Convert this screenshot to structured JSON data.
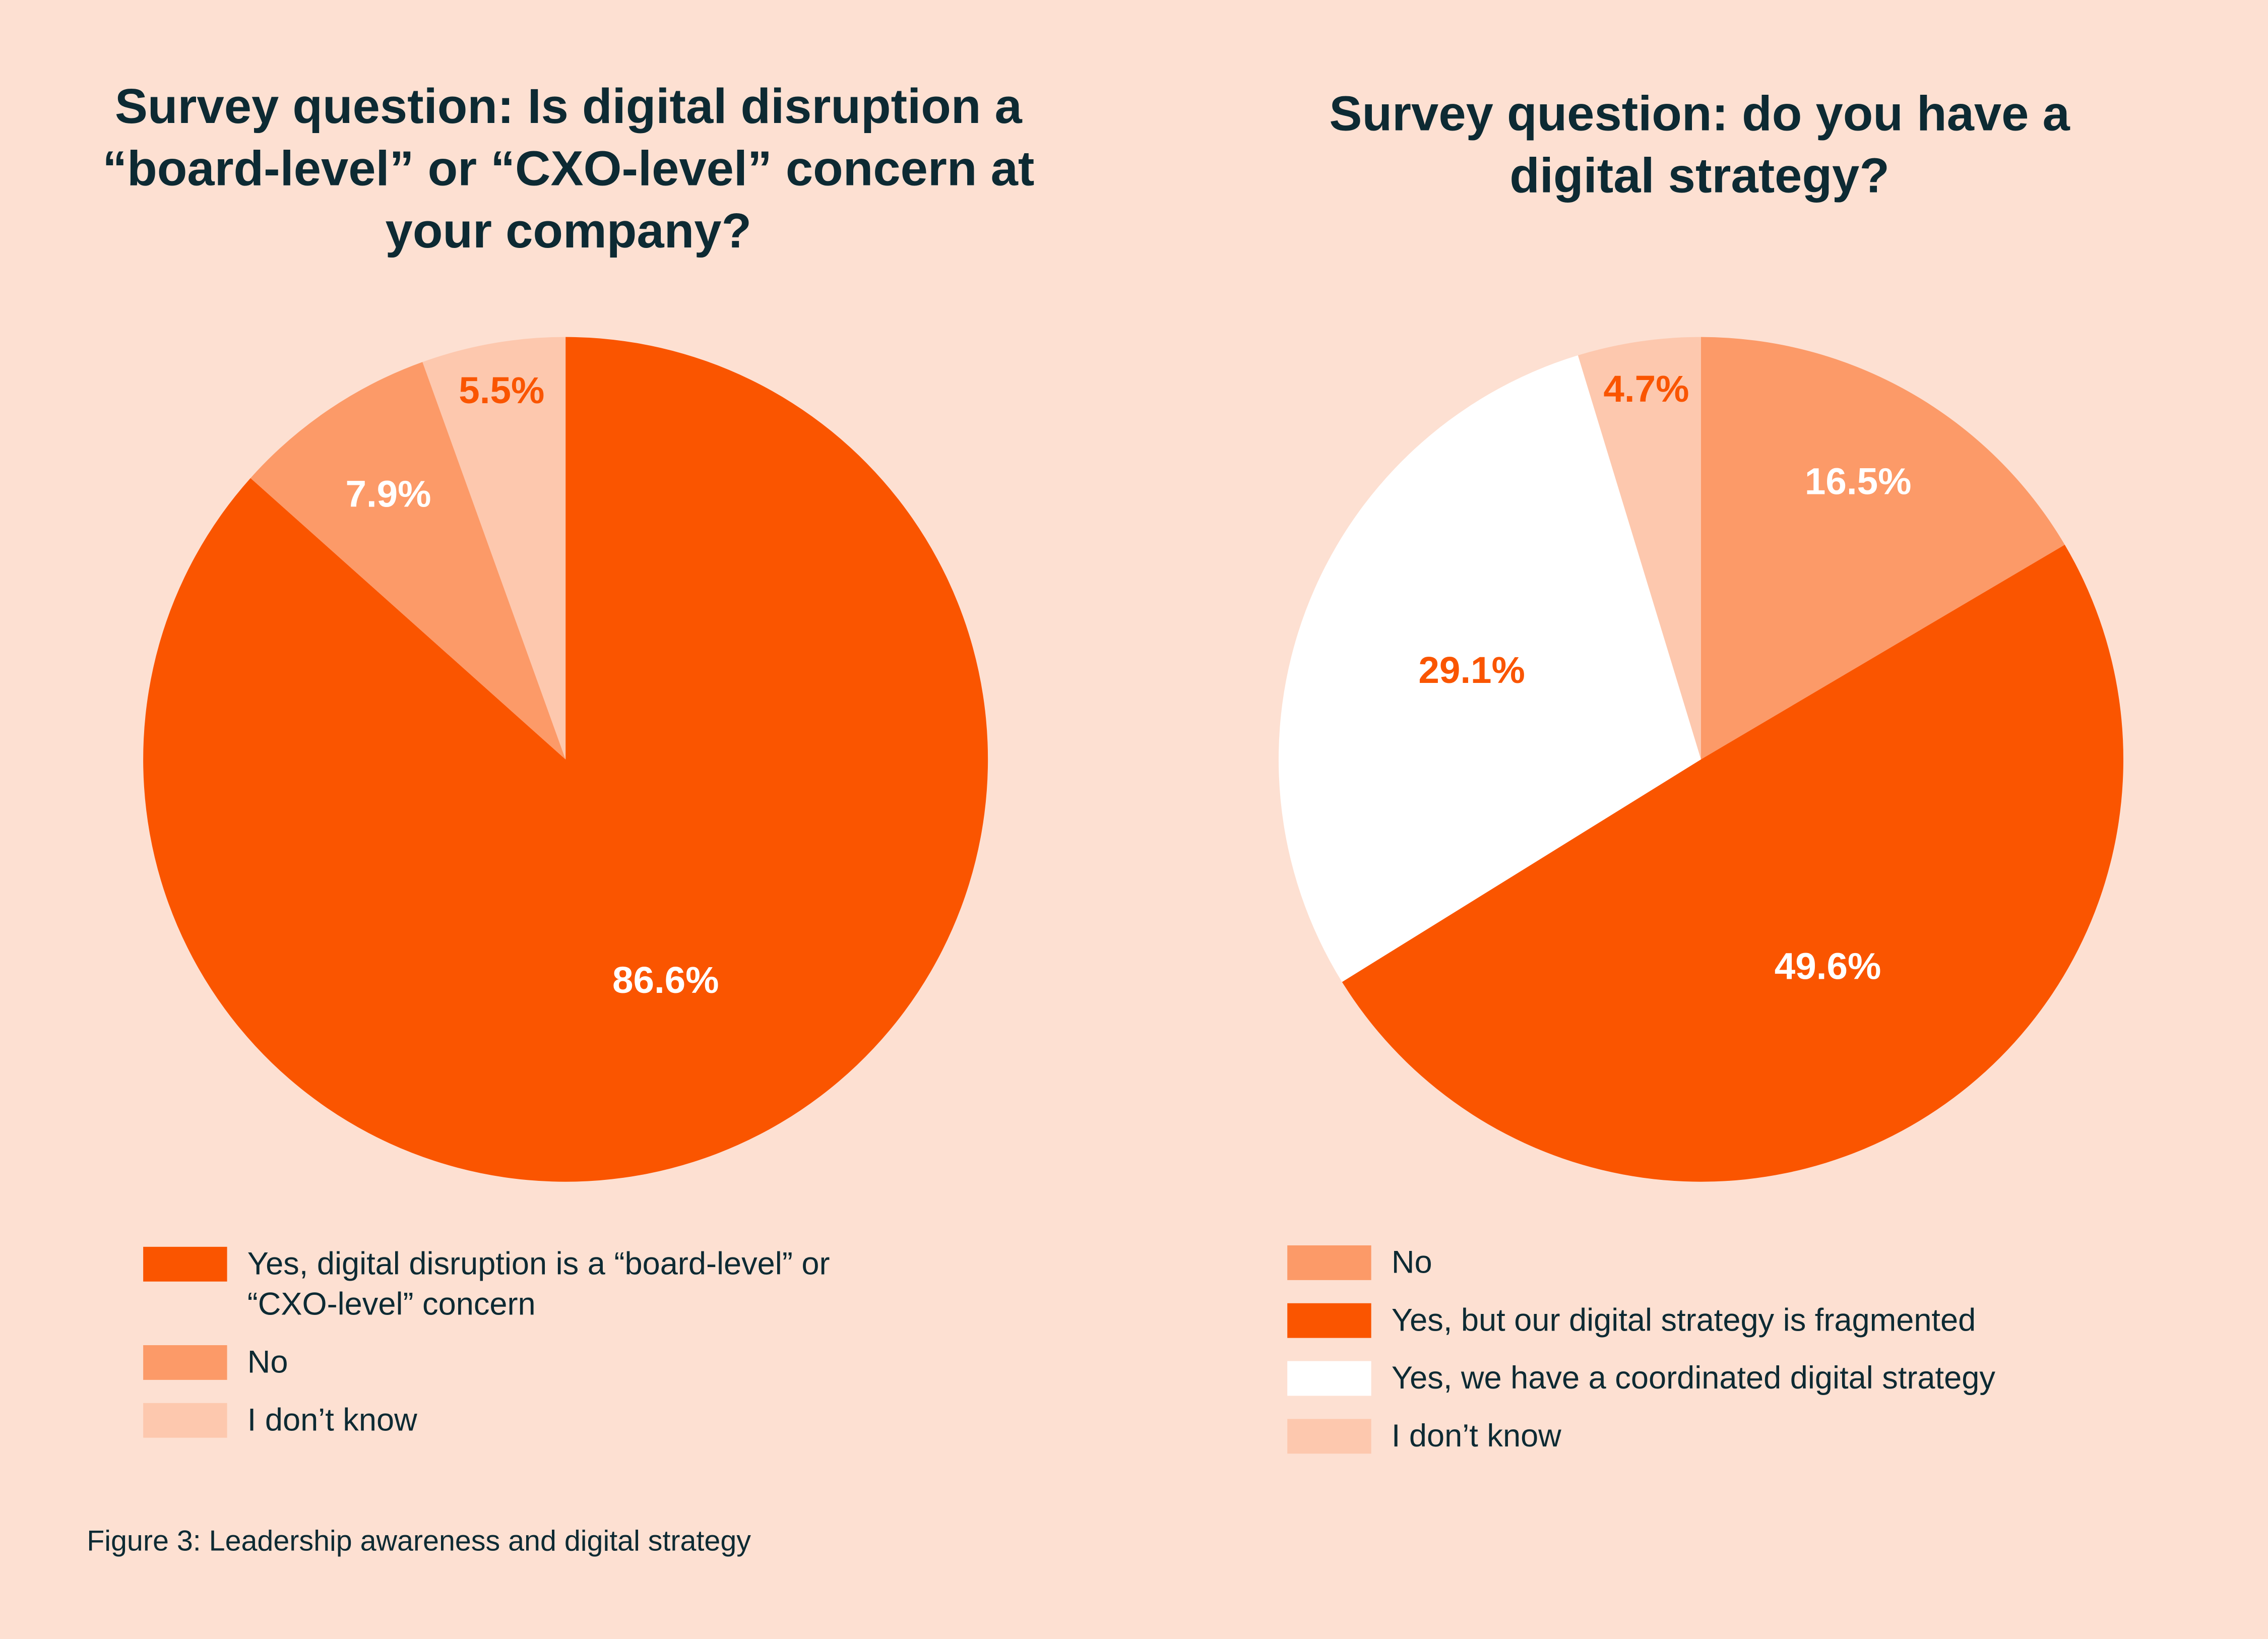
{
  "caption": "Figure 3: Leadership awareness and digital strategy",
  "chart_data": [
    {
      "type": "pie",
      "title": "Survey question: Is digital disruption a “board-level” or “CXO-level” concern at your company?",
      "categories": [
        "Yes, digital disruption is a “board-level” or “CXO-level” concern",
        "No",
        "I don’t know"
      ],
      "values": [
        86.6,
        7.9,
        5.5
      ],
      "value_labels": [
        "86.6%",
        "7.9%",
        "5.5%"
      ],
      "colors": [
        "#fa5500",
        "#fc9a68",
        "#fdc8ae"
      ]
    },
    {
      "type": "pie",
      "title": "Survey question: do you have a digital strategy?",
      "categories": [
        "No",
        "Yes, but our digital strategy is fragmented",
        "Yes, we have a coordinated digital strategy",
        "I don’t know"
      ],
      "values": [
        16.5,
        49.6,
        29.1,
        4.7
      ],
      "value_labels": [
        "16.5%",
        "49.6%",
        "29.1%",
        "4.7%"
      ],
      "colors": [
        "#fc9a68",
        "#fa5500",
        "#ffffff",
        "#fdc8ae"
      ]
    }
  ]
}
